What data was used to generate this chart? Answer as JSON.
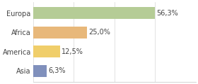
{
  "categories": [
    "Europa",
    "Africa",
    "America",
    "Asia"
  ],
  "values": [
    56.3,
    25.0,
    12.5,
    6.3
  ],
  "labels": [
    "56,3%",
    "25,0%",
    "12,5%",
    "6,3%"
  ],
  "bar_colors": [
    "#b5cc96",
    "#e8b87a",
    "#f0ce6a",
    "#8090bc"
  ],
  "background_color": "#ffffff",
  "xlim": [
    0,
    75
  ],
  "bar_height": 0.62,
  "label_fontsize": 7.0,
  "category_fontsize": 7.0,
  "gridline_color": "#dddddd",
  "grid_xticks": [
    0,
    18.75,
    37.5,
    56.25,
    75
  ]
}
